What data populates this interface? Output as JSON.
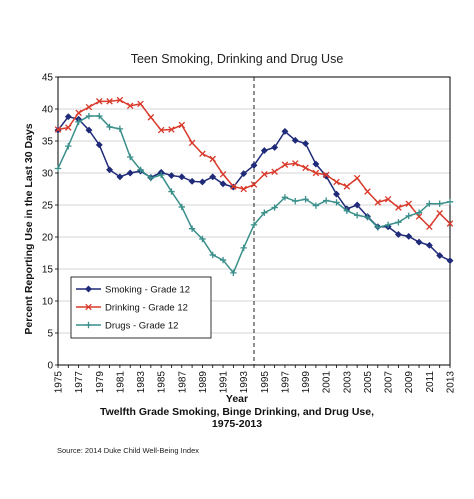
{
  "chart_data": {
    "type": "line",
    "title": "Teen Smoking, Drinking and Drug Use",
    "xlabel": "Year",
    "ylabel": "Percent Reporting Use in the Last 30 Days",
    "subtitle_line1": "Twelfth Grade Smoking, Binge Drinking, and Drug Use,",
    "subtitle_line2": "1975-2013",
    "source": "Source: 2014 Duke Child Well-Being Index",
    "xlim": [
      1975,
      2013
    ],
    "ylim": [
      0,
      45
    ],
    "x_ticks": [
      "1975",
      "1977",
      "1979",
      "1981",
      "1983",
      "1985",
      "1987",
      "1989",
      "1991",
      "1993",
      "1995",
      "1997",
      "1999",
      "2001",
      "2003",
      "2005",
      "2007",
      "2009",
      "2011",
      "2013"
    ],
    "y_ticks": [
      "0",
      "5",
      "10",
      "15",
      "20",
      "25",
      "30",
      "35",
      "40",
      "45"
    ],
    "vertical_line_at": 1994,
    "legend_position": "bottom-left",
    "x": [
      1975,
      1976,
      1977,
      1978,
      1979,
      1980,
      1981,
      1982,
      1983,
      1984,
      1985,
      1986,
      1987,
      1988,
      1989,
      1990,
      1991,
      1992,
      1993,
      1994,
      1995,
      1996,
      1997,
      1998,
      1999,
      2000,
      2001,
      2002,
      2003,
      2004,
      2005,
      2006,
      2007,
      2008,
      2009,
      2010,
      2011,
      2012,
      2013
    ],
    "series": [
      {
        "name": "Smoking - Grade 12",
        "color": "#1f2a78",
        "marker": "diamond",
        "values": [
          36.7,
          38.8,
          38.4,
          36.7,
          34.4,
          30.5,
          29.4,
          30.0,
          30.3,
          29.3,
          30.1,
          29.6,
          29.4,
          28.7,
          28.6,
          29.4,
          28.3,
          27.8,
          29.9,
          31.2,
          33.5,
          34.0,
          36.5,
          35.1,
          34.6,
          31.4,
          29.5,
          26.7,
          24.4,
          25.0,
          23.2,
          21.6,
          21.6,
          20.4,
          20.1,
          19.2,
          18.7,
          17.1,
          16.3
        ]
      },
      {
        "name": "Drinking - Grade 12",
        "color": "#d93a2b",
        "marker": "x",
        "values": [
          36.8,
          37.1,
          39.4,
          40.3,
          41.2,
          41.2,
          41.4,
          40.5,
          40.8,
          38.7,
          36.7,
          36.8,
          37.5,
          34.7,
          33.0,
          32.2,
          29.8,
          27.9,
          27.5,
          28.2,
          29.8,
          30.2,
          31.3,
          31.5,
          30.8,
          30.0,
          29.7,
          28.6,
          27.9,
          29.2,
          27.1,
          25.4,
          25.9,
          24.6,
          25.2,
          23.2,
          21.6,
          23.7,
          22.1
        ]
      },
      {
        "name": "Drugs - Grade 12",
        "color": "#3a8f8a",
        "marker": "plus",
        "values": [
          30.7,
          34.2,
          38.0,
          38.9,
          38.9,
          37.2,
          36.9,
          32.5,
          30.5,
          29.2,
          29.7,
          27.1,
          24.7,
          21.3,
          19.7,
          17.2,
          16.4,
          14.4,
          18.3,
          21.9,
          23.8,
          24.6,
          26.2,
          25.6,
          25.9,
          24.9,
          25.7,
          25.4,
          24.1,
          23.4,
          23.1,
          21.5,
          21.9,
          22.3,
          23.3,
          23.8,
          25.2,
          25.2,
          25.5
        ]
      }
    ]
  }
}
